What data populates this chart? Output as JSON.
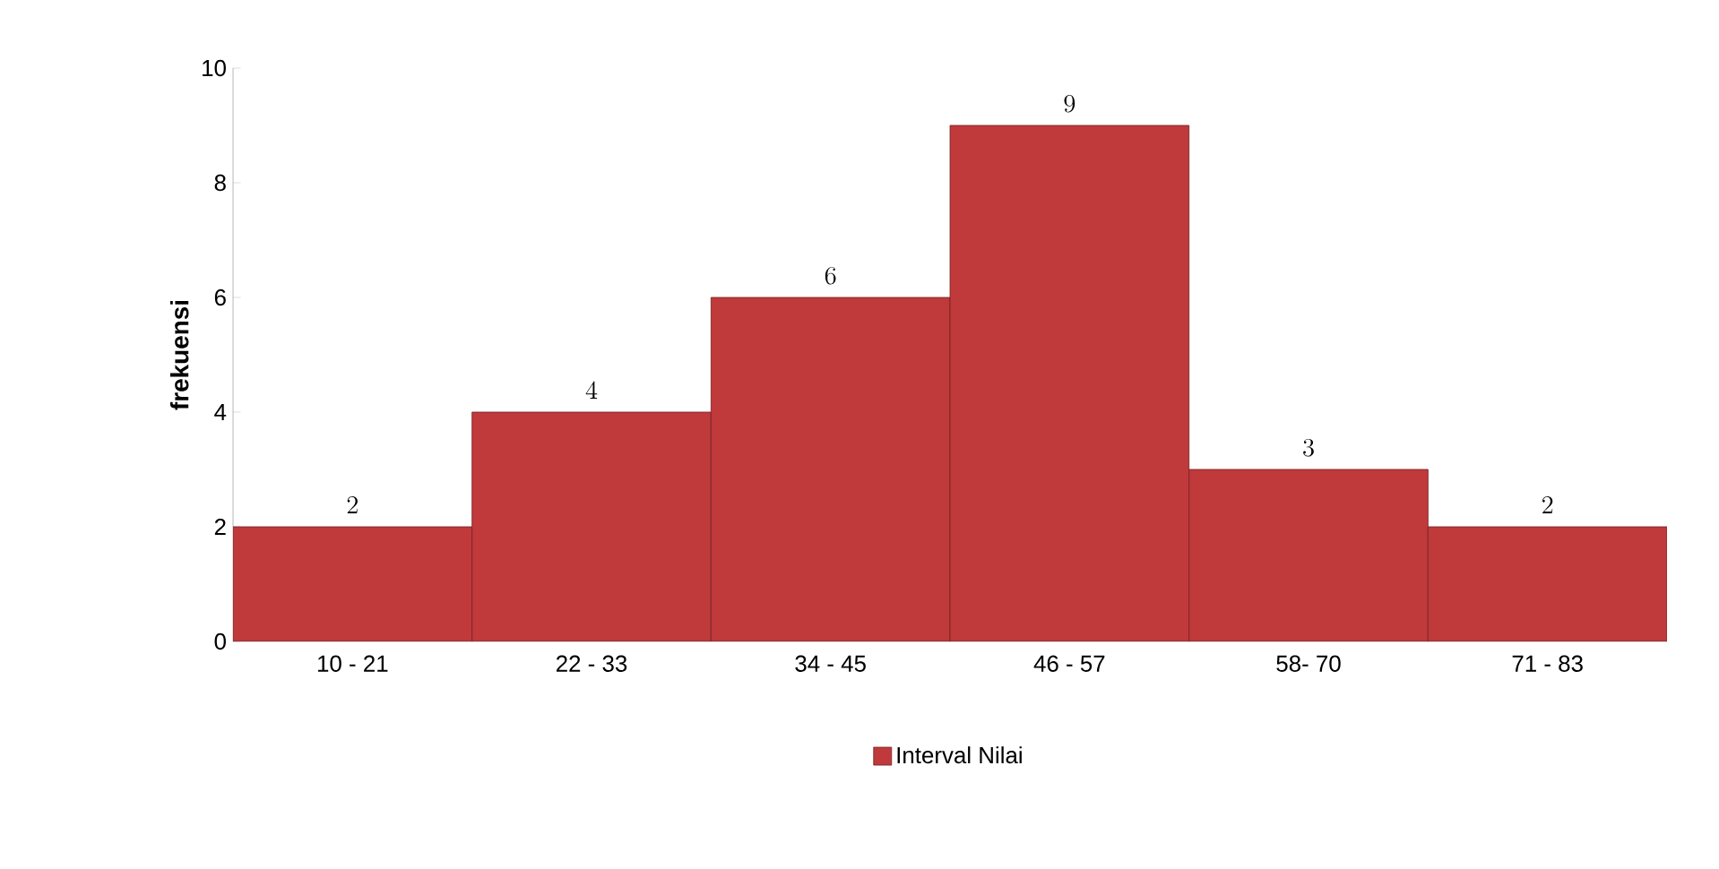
{
  "chart_data": {
    "type": "bar",
    "ylabel": "frekuensi",
    "categories": [
      "10 - 21",
      "22 - 33",
      "34 - 45",
      "46 - 57",
      "58- 70",
      "71 - 83"
    ],
    "series": [
      {
        "name": "Interval Nilai",
        "color": "#c0393b",
        "values": [
          2,
          4,
          6,
          9,
          3,
          2
        ]
      }
    ],
    "ylim": [
      0,
      10
    ],
    "yticks": [
      0,
      2,
      4,
      6,
      8,
      10
    ],
    "data_labels": true,
    "legend": "bottom",
    "grid": false
  }
}
